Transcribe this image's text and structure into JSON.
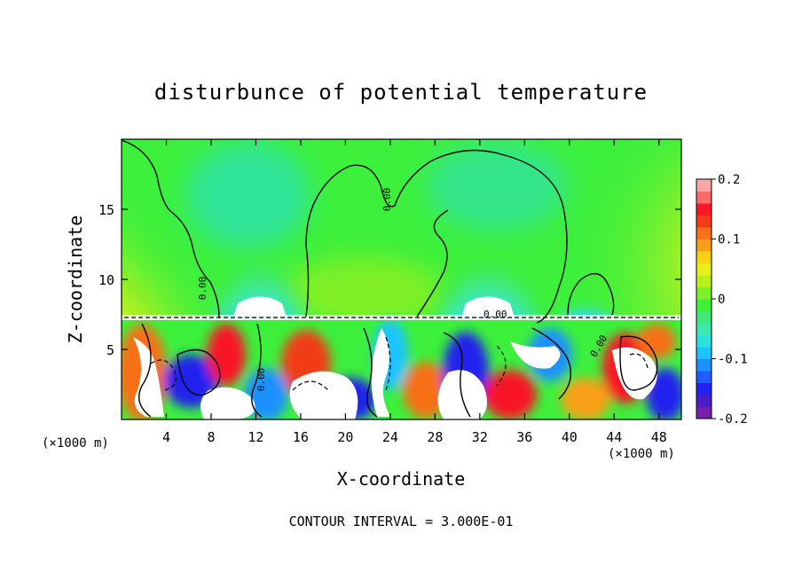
{
  "chart_data": {
    "type": "heatmap",
    "title": "disturbunce of potential temperature",
    "xlabel": "X-coordinate",
    "ylabel": "Z-coordinate",
    "x_unit_label": "(×1000 m)",
    "xlim": [
      0,
      50
    ],
    "ylim": [
      0,
      20
    ],
    "x_ticks": [
      4,
      8,
      12,
      16,
      20,
      24,
      28,
      32,
      36,
      40,
      44,
      48
    ],
    "y_ticks": [
      5,
      10,
      15
    ],
    "colorbar": {
      "range": [
        -0.2,
        0.2
      ],
      "ticks": [
        -0.2,
        -0.1,
        0,
        0.1,
        0.2
      ],
      "tick_labels": [
        "-0.2",
        "-0.1",
        "0",
        "0.1",
        "0.2"
      ],
      "colors": [
        "#7a1fa8",
        "#4a1ec8",
        "#2222ee",
        "#1f5bff",
        "#1e90ff",
        "#1fc4ff",
        "#2be0e0",
        "#3ee8b0",
        "#3ee87a",
        "#3cf03c",
        "#7df02a",
        "#b8f020",
        "#e8f018",
        "#f8d018",
        "#f8a018",
        "#f87018",
        "#f03c18",
        "#f81828",
        "#f86b6b",
        "#f8a8a8"
      ]
    },
    "contour_labels": [
      "0.00",
      "0.00",
      "0.00",
      "0.00",
      "0.00"
    ],
    "contour_interval": "CONTOUR INTERVAL = 3.000E-01"
  }
}
